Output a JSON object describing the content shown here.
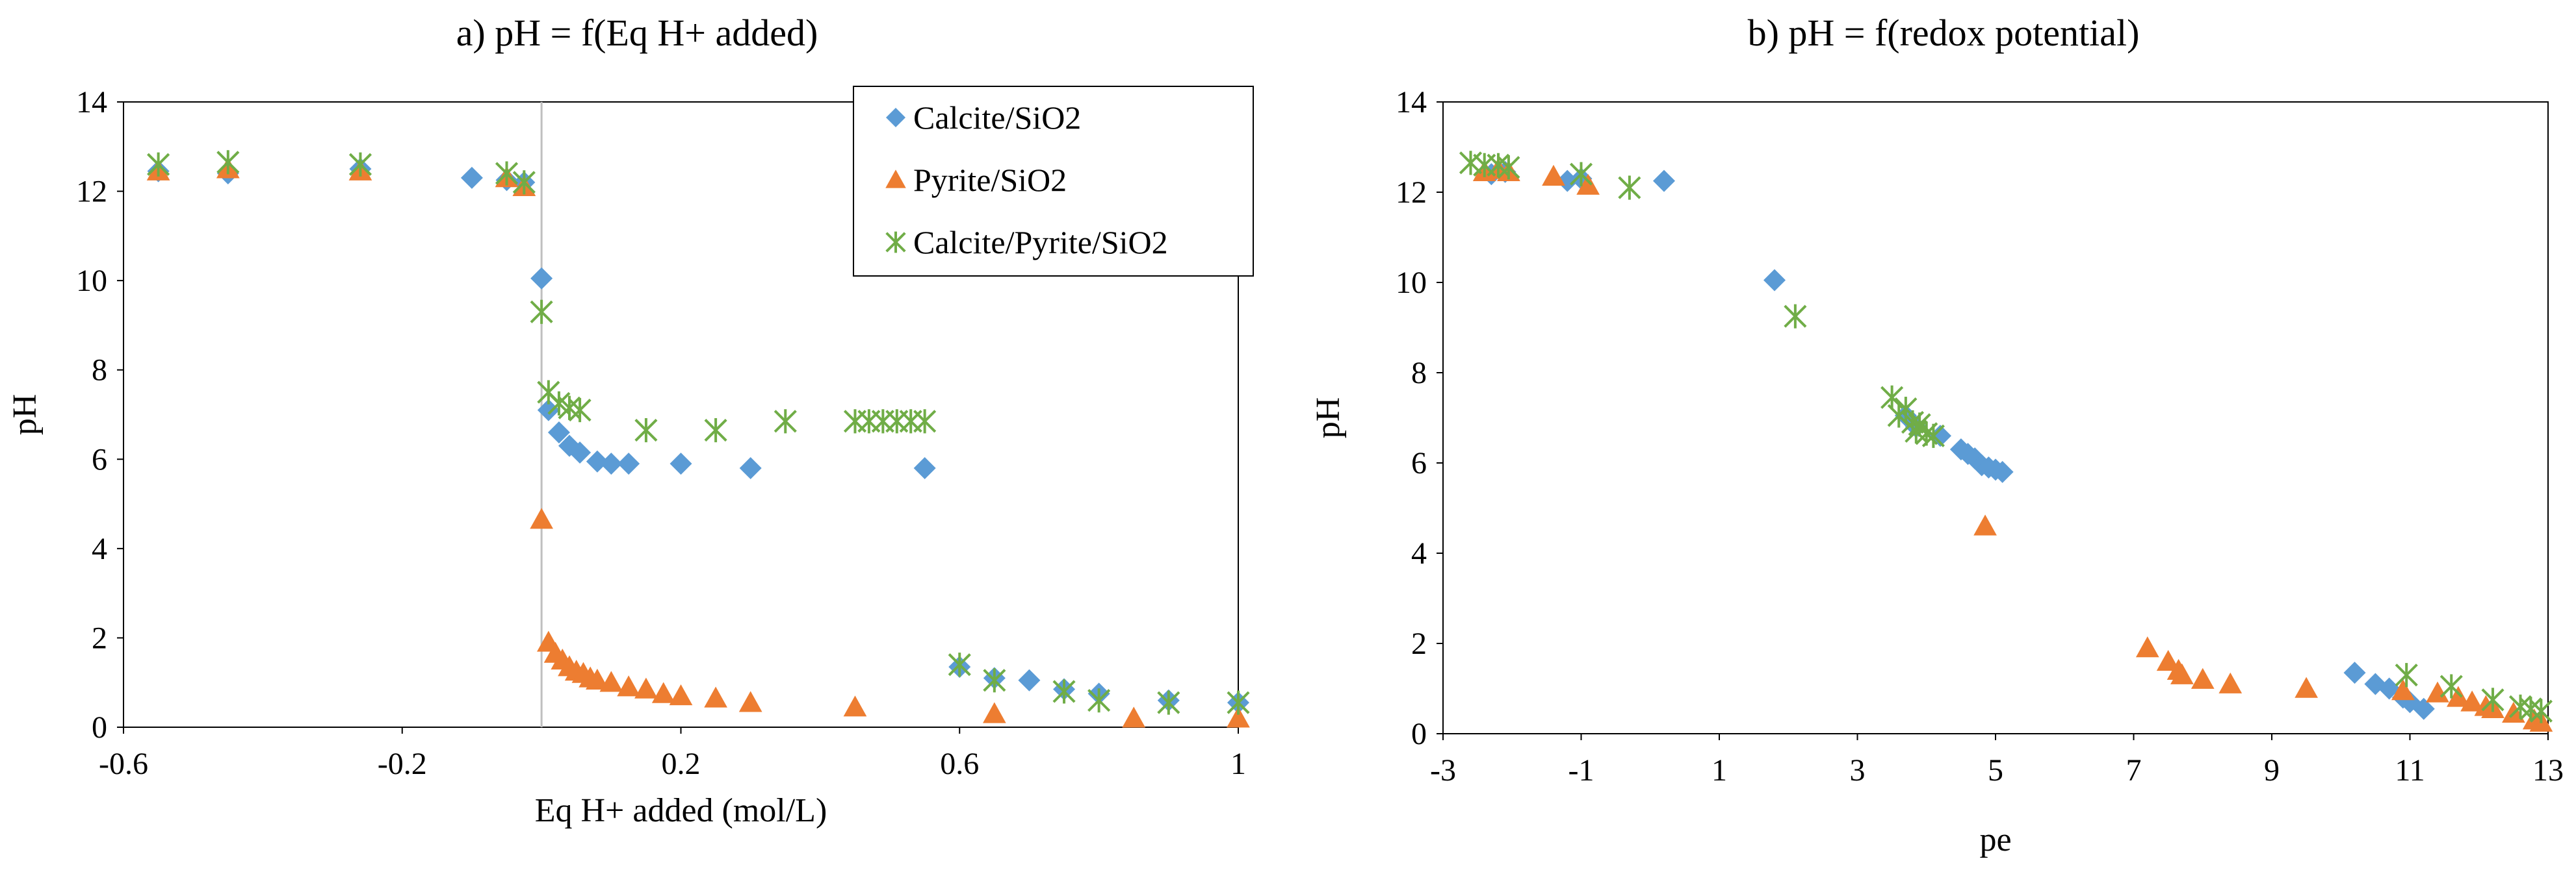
{
  "chart_data": [
    {
      "type": "scatter",
      "title": "a) pH = f(Eq H+ added)",
      "xlabel": "Eq H+ added (mol/L)",
      "ylabel": "pH",
      "xlim": [
        -0.6,
        1
      ],
      "ylim": [
        0,
        14
      ],
      "xticks": [
        -0.6,
        -0.2,
        0.2,
        0.6,
        1
      ],
      "xtick_labels": [
        "-0.6",
        "-0.2",
        "0.2",
        "0.6",
        "1"
      ],
      "yticks": [
        0,
        2,
        4,
        6,
        8,
        10,
        12,
        14
      ],
      "ytick_labels": [
        "0",
        "2",
        "4",
        "6",
        "8",
        "10",
        "12",
        "14"
      ],
      "grid": false,
      "legend_position": "top-right",
      "vertical_line_x": 0,
      "series": [
        {
          "name": "Calcite/SiO2",
          "color": "#5B9BD5",
          "marker": "diamond",
          "points": [
            [
              -0.55,
              12.45
            ],
            [
              -0.45,
              12.4
            ],
            [
              -0.26,
              12.5
            ],
            [
              -0.1,
              12.3
            ],
            [
              -0.05,
              12.25
            ],
            [
              -0.025,
              12.2
            ],
            [
              0,
              10.05
            ],
            [
              0.01,
              7.1
            ],
            [
              0.025,
              6.6
            ],
            [
              0.04,
              6.3
            ],
            [
              0.055,
              6.15
            ],
            [
              0.08,
              5.95
            ],
            [
              0.1,
              5.9
            ],
            [
              0.125,
              5.9
            ],
            [
              0.2,
              5.9
            ],
            [
              0.3,
              5.8
            ],
            [
              0.55,
              5.8
            ],
            [
              0.6,
              1.35
            ],
            [
              0.65,
              1.1
            ],
            [
              0.7,
              1.05
            ],
            [
              0.75,
              0.85
            ],
            [
              0.8,
              0.75
            ],
            [
              0.9,
              0.6
            ],
            [
              1.0,
              0.55
            ]
          ]
        },
        {
          "name": "Pyrite/SiO2",
          "color": "#ED7D31",
          "marker": "triangle",
          "points": [
            [
              -0.55,
              12.45
            ],
            [
              -0.45,
              12.5
            ],
            [
              -0.26,
              12.45
            ],
            [
              -0.05,
              12.3
            ],
            [
              -0.025,
              12.1
            ],
            [
              0,
              4.65
            ],
            [
              0.01,
              1.9
            ],
            [
              0.02,
              1.65
            ],
            [
              0.03,
              1.5
            ],
            [
              0.04,
              1.35
            ],
            [
              0.05,
              1.25
            ],
            [
              0.06,
              1.2
            ],
            [
              0.07,
              1.1
            ],
            [
              0.08,
              1.05
            ],
            [
              0.1,
              1.0
            ],
            [
              0.125,
              0.9
            ],
            [
              0.15,
              0.85
            ],
            [
              0.175,
              0.75
            ],
            [
              0.2,
              0.7
            ],
            [
              0.25,
              0.65
            ],
            [
              0.3,
              0.55
            ],
            [
              0.45,
              0.45
            ],
            [
              0.65,
              0.3
            ],
            [
              0.85,
              0.2
            ],
            [
              1.0,
              0.2
            ]
          ]
        },
        {
          "name": "Calcite/Pyrite/SiO2",
          "color": "#70AD47",
          "marker": "asterisk",
          "points": [
            [
              -0.55,
              12.6
            ],
            [
              -0.45,
              12.65
            ],
            [
              -0.26,
              12.6
            ],
            [
              -0.05,
              12.4
            ],
            [
              -0.025,
              12.2
            ],
            [
              0,
              9.3
            ],
            [
              0.01,
              7.5
            ],
            [
              0.025,
              7.25
            ],
            [
              0.04,
              7.15
            ],
            [
              0.055,
              7.1
            ],
            [
              0.15,
              6.65
            ],
            [
              0.25,
              6.65
            ],
            [
              0.35,
              6.85
            ],
            [
              0.45,
              6.85
            ],
            [
              0.47,
              6.85
            ],
            [
              0.49,
              6.85
            ],
            [
              0.51,
              6.85
            ],
            [
              0.53,
              6.85
            ],
            [
              0.55,
              6.85
            ],
            [
              0.6,
              1.4
            ],
            [
              0.65,
              1.05
            ],
            [
              0.75,
              0.8
            ],
            [
              0.8,
              0.6
            ],
            [
              0.9,
              0.55
            ],
            [
              1.0,
              0.55
            ]
          ]
        }
      ]
    },
    {
      "type": "scatter",
      "title": "b) pH = f(redox potential)",
      "xlabel": "pe",
      "ylabel": "pH",
      "xlim": [
        -3,
        13
      ],
      "ylim": [
        0,
        14
      ],
      "xticks": [
        -3,
        -1,
        1,
        3,
        5,
        7,
        9,
        11,
        13
      ],
      "xtick_labels": [
        "-3",
        "-1",
        "1",
        "3",
        "5",
        "7",
        "9",
        "11",
        "13"
      ],
      "yticks": [
        0,
        2,
        4,
        6,
        8,
        10,
        12,
        14
      ],
      "ytick_labels": [
        "0",
        "2",
        "4",
        "6",
        "8",
        "10",
        "12",
        "14"
      ],
      "grid": false,
      "series": [
        {
          "name": "Calcite/SiO2",
          "color": "#5B9BD5",
          "marker": "diamond",
          "points": [
            [
              -2.3,
              12.4
            ],
            [
              -2.1,
              12.45
            ],
            [
              -1.2,
              12.25
            ],
            [
              -1.0,
              12.3
            ],
            [
              0.2,
              12.25
            ],
            [
              1.8,
              10.05
            ],
            [
              3.7,
              7.05
            ],
            [
              3.85,
              6.8
            ],
            [
              4.2,
              6.6
            ],
            [
              4.5,
              6.3
            ],
            [
              4.6,
              6.2
            ],
            [
              4.7,
              6.1
            ],
            [
              4.8,
              5.95
            ],
            [
              4.9,
              5.9
            ],
            [
              5.0,
              5.85
            ],
            [
              5.1,
              5.8
            ],
            [
              10.2,
              1.35
            ],
            [
              10.5,
              1.1
            ],
            [
              10.7,
              1.0
            ],
            [
              10.9,
              0.8
            ],
            [
              11.0,
              0.7
            ],
            [
              11.2,
              0.55
            ]
          ]
        },
        {
          "name": "Pyrite/SiO2",
          "color": "#ED7D31",
          "marker": "triangle",
          "points": [
            [
              -2.4,
              12.45
            ],
            [
              -2.2,
              12.5
            ],
            [
              -2.05,
              12.45
            ],
            [
              -1.4,
              12.35
            ],
            [
              -0.9,
              12.15
            ],
            [
              4.85,
              4.6
            ],
            [
              7.2,
              1.9
            ],
            [
              7.5,
              1.6
            ],
            [
              7.65,
              1.4
            ],
            [
              7.7,
              1.3
            ],
            [
              8.0,
              1.2
            ],
            [
              8.4,
              1.1
            ],
            [
              9.5,
              1.0
            ],
            [
              10.9,
              0.95
            ],
            [
              11.4,
              0.9
            ],
            [
              11.7,
              0.8
            ],
            [
              11.9,
              0.7
            ],
            [
              12.1,
              0.6
            ],
            [
              12.2,
              0.55
            ],
            [
              12.5,
              0.45
            ],
            [
              12.8,
              0.3
            ],
            [
              12.9,
              0.25
            ]
          ]
        },
        {
          "name": "Calcite/Pyrite/SiO2",
          "color": "#70AD47",
          "marker": "asterisk",
          "points": [
            [
              -2.6,
              12.65
            ],
            [
              -2.4,
              12.6
            ],
            [
              -2.2,
              12.6
            ],
            [
              -2.05,
              12.55
            ],
            [
              -1.0,
              12.4
            ],
            [
              -0.3,
              12.1
            ],
            [
              2.1,
              9.25
            ],
            [
              3.5,
              7.45
            ],
            [
              3.6,
              7.05
            ],
            [
              3.7,
              7.2
            ],
            [
              3.8,
              6.9
            ],
            [
              3.85,
              6.7
            ],
            [
              3.9,
              6.85
            ],
            [
              4.0,
              6.65
            ],
            [
              4.1,
              6.6
            ],
            [
              10.95,
              1.3
            ],
            [
              11.6,
              1.05
            ],
            [
              12.2,
              0.75
            ],
            [
              12.6,
              0.6
            ],
            [
              12.75,
              0.55
            ],
            [
              12.9,
              0.5
            ]
          ]
        }
      ]
    }
  ]
}
